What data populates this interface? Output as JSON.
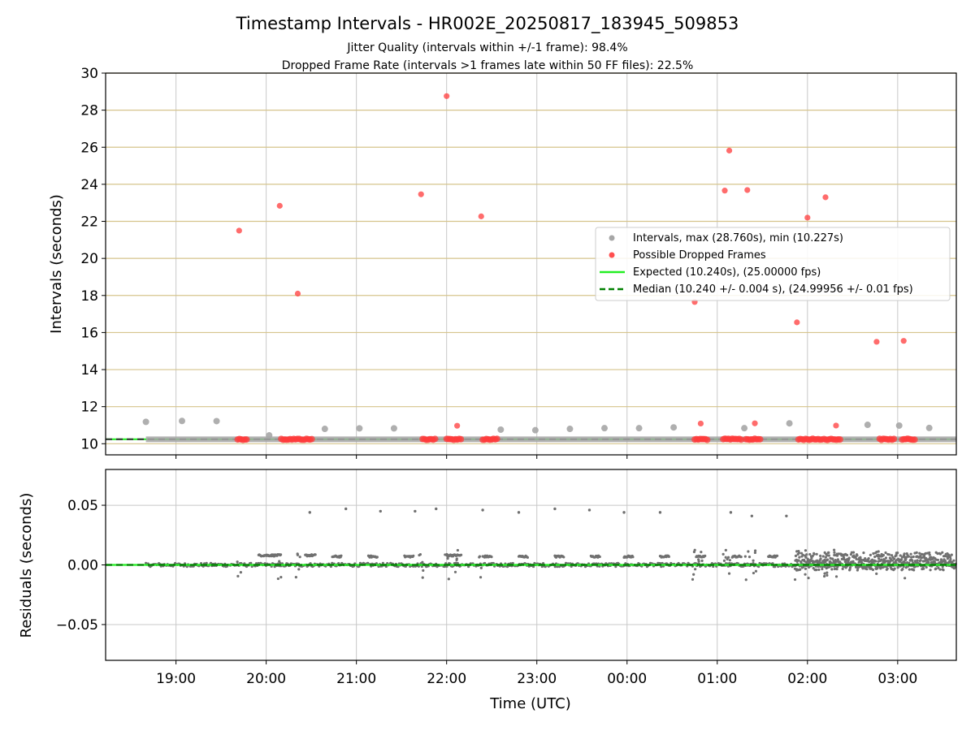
{
  "chart_data": [
    {
      "type": "scatter",
      "title": "Timestamp Intervals - HR002E_20250817_183945_509853",
      "subtitle_1": "Jitter Quality (intervals within +/-1 frame): 98.4%",
      "subtitle_2": "Dropped Frame Rate (intervals >1 frames late within 50 FF files): 22.5%",
      "ylabel": "Intervals (seconds)",
      "xlabel": "",
      "ylim": [
        9.4,
        30
      ],
      "yticks": [
        10,
        12,
        14,
        16,
        18,
        20,
        22,
        24,
        26,
        28,
        30
      ],
      "ytick_labels": [
        "10",
        "12",
        "14",
        "16",
        "18",
        "20",
        "22",
        "24",
        "26",
        "28",
        "30"
      ],
      "x_is_time": true,
      "xlim_hours": [
        18.22,
        27.65
      ],
      "xticks_hours": [
        19,
        20,
        21,
        22,
        23,
        24,
        25,
        26,
        27
      ],
      "grid": "horizontal lines at y ticks (tan), vertical lines at time ticks (grey)",
      "legend_position": "center-right",
      "legend": [
        "Intervals, max (28.760s), min (10.227s)",
        "Possible Dropped Frames",
        "Expected (10.240s), (25.00000 fps)",
        "Median (10.240 +/- 0.004 s), (24.99956 +/- 0.01 fps)"
      ],
      "expected_value": 10.24,
      "median_value": 10.24,
      "intervals_outliers": [
        {
          "t": "18:40",
          "y": 11.18
        },
        {
          "t": "19:04",
          "y": 11.23
        },
        {
          "t": "19:27",
          "y": 11.22
        },
        {
          "t": "20:02",
          "y": 10.45
        },
        {
          "t": "20:39",
          "y": 10.8
        },
        {
          "t": "21:02",
          "y": 10.83
        },
        {
          "t": "21:25",
          "y": 10.83
        },
        {
          "t": "22:36",
          "y": 10.76
        },
        {
          "t": "22:59",
          "y": 10.73
        },
        {
          "t": "23:22",
          "y": 10.8
        },
        {
          "t": "23:45",
          "y": 10.84
        },
        {
          "t": "00:08",
          "y": 10.84
        },
        {
          "t": "00:31",
          "y": 10.88
        },
        {
          "t": "01:18",
          "y": 10.84
        },
        {
          "t": "01:48",
          "y": 11.1
        },
        {
          "t": "02:40",
          "y": 11.02
        },
        {
          "t": "03:01",
          "y": 10.98
        },
        {
          "t": "03:21",
          "y": 10.85
        }
      ],
      "possible_dropped_frames": [
        {
          "t": "19:42",
          "y": 21.5
        },
        {
          "t": "20:09",
          "y": 22.84
        },
        {
          "t": "20:21",
          "y": 18.1
        },
        {
          "t": "21:43",
          "y": 23.46
        },
        {
          "t": "22:00",
          "y": 28.76
        },
        {
          "t": "22:07",
          "y": 10.97
        },
        {
          "t": "22:23",
          "y": 22.27
        },
        {
          "t": "00:45",
          "y": 17.65
        },
        {
          "t": "00:49",
          "y": 11.09
        },
        {
          "t": "01:05",
          "y": 23.66
        },
        {
          "t": "01:08",
          "y": 25.82
        },
        {
          "t": "01:20",
          "y": 23.69
        },
        {
          "t": "01:25",
          "y": 11.1
        },
        {
          "t": "01:53",
          "y": 16.55
        },
        {
          "t": "02:00",
          "y": 22.2
        },
        {
          "t": "02:12",
          "y": 23.3
        },
        {
          "t": "02:19",
          "y": 10.98
        },
        {
          "t": "02:46",
          "y": 15.5
        },
        {
          "t": "03:04",
          "y": 15.55
        }
      ],
      "dropped_frame_clusters_at_10_24": [
        {
          "start": "19:41",
          "end": "19:48"
        },
        {
          "start": "20:10",
          "end": "20:21"
        },
        {
          "start": "20:22",
          "end": "20:31"
        },
        {
          "start": "21:44",
          "end": "21:53"
        },
        {
          "start": "22:00",
          "end": "22:10"
        },
        {
          "start": "22:24",
          "end": "22:34"
        },
        {
          "start": "00:45",
          "end": "00:54"
        },
        {
          "start": "01:04",
          "end": "01:17"
        },
        {
          "start": "01:19",
          "end": "01:29"
        },
        {
          "start": "01:54",
          "end": "02:10"
        },
        {
          "start": "02:11",
          "end": "02:22"
        },
        {
          "start": "02:48",
          "end": "02:58"
        },
        {
          "start": "03:03",
          "end": "03:12"
        }
      ]
    },
    {
      "type": "scatter",
      "title": "",
      "xlabel": "Time (UTC)",
      "ylabel": "Residuals (seconds)",
      "ylim": [
        -0.08,
        0.08
      ],
      "yticks": [
        -0.05,
        0,
        0.05
      ],
      "ytick_labels": [
        "−0.05",
        "0.00",
        "0.05"
      ],
      "x_is_time": true,
      "xlim_hours": [
        18.22,
        27.65
      ],
      "xticks_hours": [
        19,
        20,
        21,
        22,
        23,
        24,
        25,
        26,
        27
      ],
      "xtick_labels": [
        "19:00",
        "20:00",
        "21:00",
        "22:00",
        "23:00",
        "00:00",
        "01:00",
        "02:00",
        "03:00"
      ],
      "grid": "horizontal and vertical grey lines",
      "zero_line": 0,
      "residual_outliers": [
        {
          "t": "20:29",
          "y": 0.044
        },
        {
          "t": "20:53",
          "y": 0.047
        },
        {
          "t": "21:16",
          "y": 0.045
        },
        {
          "t": "21:39",
          "y": 0.045
        },
        {
          "t": "21:53",
          "y": 0.047
        },
        {
          "t": "22:24",
          "y": 0.046
        },
        {
          "t": "22:48",
          "y": 0.044
        },
        {
          "t": "23:12",
          "y": 0.047
        },
        {
          "t": "23:35",
          "y": 0.046
        },
        {
          "t": "23:58",
          "y": 0.044
        },
        {
          "t": "00:22",
          "y": 0.044
        },
        {
          "t": "01:09",
          "y": 0.044
        },
        {
          "t": "01:23",
          "y": 0.041
        },
        {
          "t": "01:46",
          "y": 0.041
        }
      ],
      "residual_plateau_segments": [
        {
          "start": "19:55",
          "end": "20:10",
          "y": 0.008
        },
        {
          "start": "20:26",
          "end": "20:33",
          "y": 0.008
        },
        {
          "start": "20:44",
          "end": "20:50",
          "y": 0.007
        },
        {
          "start": "21:08",
          "end": "21:14",
          "y": 0.007
        },
        {
          "start": "21:32",
          "end": "21:38",
          "y": 0.007
        },
        {
          "start": "22:00",
          "end": "22:10",
          "y": 0.008
        },
        {
          "start": "22:24",
          "end": "22:30",
          "y": 0.007
        },
        {
          "start": "22:48",
          "end": "22:54",
          "y": 0.007
        },
        {
          "start": "23:12",
          "end": "23:18",
          "y": 0.007
        },
        {
          "start": "23:36",
          "end": "23:42",
          "y": 0.007
        },
        {
          "start": "23:58",
          "end": "00:04",
          "y": 0.007
        },
        {
          "start": "00:22",
          "end": "00:28",
          "y": 0.007
        },
        {
          "start": "00:46",
          "end": "00:52",
          "y": 0.007
        },
        {
          "start": "01:10",
          "end": "01:16",
          "y": 0.007
        },
        {
          "start": "01:34",
          "end": "01:40",
          "y": 0.007
        },
        {
          "start": "01:52",
          "end": "03:38",
          "y": 0.006
        }
      ]
    }
  ],
  "colors": {
    "intervals": "#a6a6a6",
    "dropped": "#ff3b3b",
    "expected": "#22ee22",
    "median": "#008000",
    "median_line_dark": "#3a3a3a",
    "residual_points": "#707070",
    "grid_vertical": "#c8c8c8",
    "grid_horizontal_top": "#d6c48c"
  }
}
